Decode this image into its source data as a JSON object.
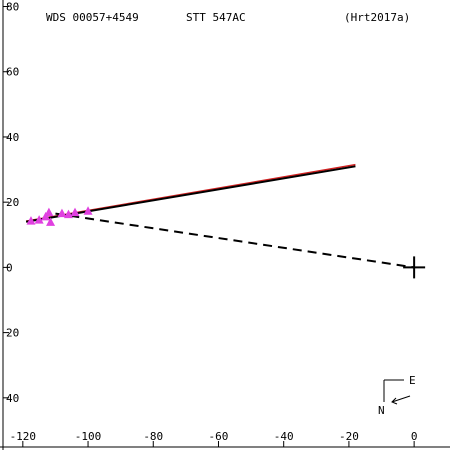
{
  "header": {
    "wds_id": "WDS 00057+4549",
    "discoverer": "STT 547AC",
    "reference": "(Hrt2017a)"
  },
  "chart_data": {
    "type": "scatter",
    "x_ticks": [
      -120,
      -100,
      -80,
      -60,
      -40,
      -20,
      0
    ],
    "y_ticks": [
      80,
      60,
      40,
      20,
      0,
      -20,
      -40
    ],
    "x_tick_labels": [
      "-120",
      "-100",
      "-80",
      "-60",
      "-40",
      "-20",
      "0"
    ],
    "y_tick_labels": [
      "80",
      "60",
      "40",
      "20",
      "0",
      "20",
      "40"
    ],
    "xlim": [
      -127,
      11
    ],
    "ylim": [
      -56,
      82
    ],
    "primary_marker": [
      0,
      0
    ],
    "observations": [
      {
        "x": -117.5,
        "y": 14.2
      },
      {
        "x": -115.0,
        "y": 14.5
      },
      {
        "x": -113.0,
        "y": 15.5
      },
      {
        "x": -112.0,
        "y": 16.8
      },
      {
        "x": -111.5,
        "y": 13.8
      },
      {
        "x": -108.0,
        "y": 16.5
      },
      {
        "x": -106.0,
        "y": 16.2
      },
      {
        "x": -104.0,
        "y": 16.8
      },
      {
        "x": -100.0,
        "y": 17.2
      }
    ],
    "fit_line": {
      "from": [
        -119,
        14
      ],
      "to": [
        -18,
        31
      ]
    },
    "ref_line": {
      "from": [
        -119,
        14.2
      ],
      "to": [
        -18,
        31.5
      ]
    },
    "dashed_line": {
      "from": [
        -110,
        16.5
      ],
      "to": [
        0,
        0
      ]
    },
    "orientation": {
      "east_label": "E",
      "north_label": "N"
    },
    "colors": {
      "axis": "#000000",
      "fit_line": "#000000",
      "ref_line": "#d02020",
      "marker": "#e040e0",
      "primary": "#000000"
    }
  }
}
